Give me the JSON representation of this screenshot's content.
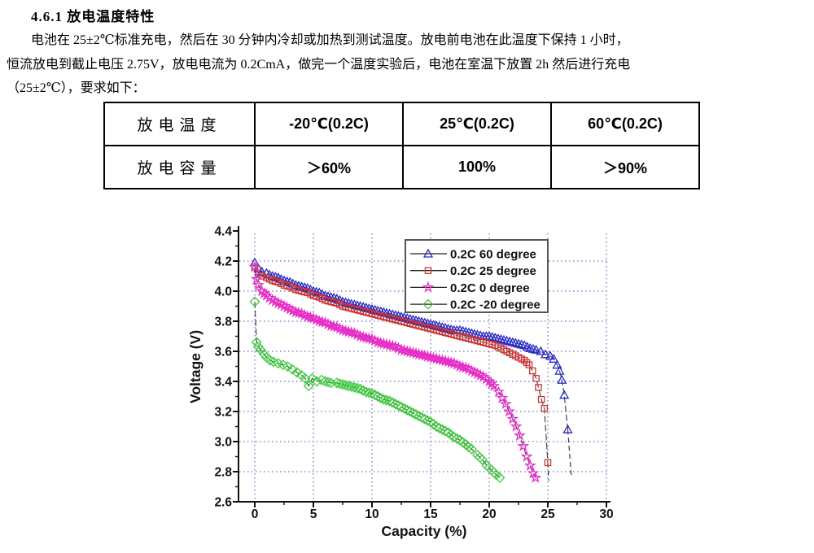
{
  "heading": "4.6.1  放电温度特性",
  "paragraph": {
    "lines": [
      "电池在 25±2℃标准充电，然后在 30 分钟内冷却或加热到测试温度。放电前电池在此温度下保持 1 小时，",
      "恒流放电到截止电压 2.75V，放电电流为 0.2CmA，做完一个温度实验后，电池在室温下放置 2h 然后进行充电",
      "（25±2℃），要求如下："
    ]
  },
  "table": {
    "rows": [
      {
        "cells": [
          "放电温度",
          "-20℃(0.2C)",
          "25℃(0.2C)",
          "60℃(0.2C)"
        ]
      },
      {
        "cells": [
          "放电容量",
          "＞60%",
          "100%",
          "＞90%"
        ]
      }
    ]
  },
  "chart_data": {
    "type": "line",
    "title": "",
    "xlabel": "Capacity (%)",
    "ylabel": "Voltage (V)",
    "xlim": [
      0,
      30
    ],
    "ylim": [
      2.6,
      4.4
    ],
    "xticks": [
      0,
      5,
      10,
      15,
      20,
      25,
      30
    ],
    "yticks": [
      2.6,
      2.8,
      3.0,
      3.2,
      3.4,
      3.6,
      3.8,
      4.0,
      4.2,
      4.4
    ],
    "minor_x_step": 2.5,
    "minor_y_step": 0.1,
    "grid": true,
    "grid_color": "#4747bb",
    "axis_color": "#111111",
    "line_color": "#3c3c3c",
    "legend_position": "top-right-inside",
    "legend_border": "#555555",
    "series": [
      {
        "name": "0.2C 60 degree",
        "marker": "triangle",
        "color": "#2a2ac8",
        "points": [
          [
            0,
            4.19
          ],
          [
            0.3,
            4.15
          ],
          [
            0.6,
            4.13
          ],
          [
            1,
            4.12
          ],
          [
            1.5,
            4.1
          ],
          [
            2,
            4.09
          ],
          [
            2.5,
            4.07
          ],
          [
            3,
            4.06
          ],
          [
            3.5,
            4.04
          ],
          [
            4,
            4.03
          ],
          [
            4.5,
            4.02
          ],
          [
            5,
            4.0
          ],
          [
            5.5,
            3.99
          ],
          [
            6,
            3.97
          ],
          [
            6.5,
            3.96
          ],
          [
            7,
            3.95
          ],
          [
            7.5,
            3.93
          ],
          [
            8,
            3.92
          ],
          [
            8.5,
            3.91
          ],
          [
            9,
            3.9
          ],
          [
            9.5,
            3.89
          ],
          [
            10,
            3.88
          ],
          [
            10.5,
            3.87
          ],
          [
            11,
            3.86
          ],
          [
            11.5,
            3.85
          ],
          [
            12,
            3.84
          ],
          [
            12.5,
            3.83
          ],
          [
            13,
            3.82
          ],
          [
            13.5,
            3.81
          ],
          [
            14,
            3.8
          ],
          [
            14.5,
            3.79
          ],
          [
            15,
            3.78
          ],
          [
            15.5,
            3.77
          ],
          [
            16,
            3.76
          ],
          [
            16.5,
            3.75
          ],
          [
            17,
            3.74
          ],
          [
            17.5,
            3.74
          ],
          [
            18,
            3.73
          ],
          [
            18.5,
            3.72
          ],
          [
            19,
            3.71
          ],
          [
            19.5,
            3.7
          ],
          [
            20,
            3.7
          ],
          [
            20.5,
            3.69
          ],
          [
            21,
            3.68
          ],
          [
            21.5,
            3.67
          ],
          [
            22,
            3.66
          ],
          [
            22.5,
            3.65
          ],
          [
            23,
            3.64
          ],
          [
            23.5,
            3.62
          ],
          [
            24,
            3.61
          ],
          [
            24.4,
            3.6
          ],
          [
            24.8,
            3.58
          ],
          [
            25.2,
            3.57
          ],
          [
            25.5,
            3.55
          ],
          [
            25.8,
            3.51
          ],
          [
            26.0,
            3.47
          ],
          [
            26.2,
            3.41
          ],
          [
            26.4,
            3.31
          ],
          [
            26.7,
            3.08
          ]
        ],
        "tail": [
          [
            26.7,
            3.08
          ],
          [
            27.0,
            2.77
          ]
        ]
      },
      {
        "name": "0.2C 25 degree",
        "marker": "square",
        "color": "#d03232",
        "points": [
          [
            0,
            4.16
          ],
          [
            0.3,
            4.12
          ],
          [
            0.6,
            4.1
          ],
          [
            1,
            4.09
          ],
          [
            1.5,
            4.07
          ],
          [
            2,
            4.06
          ],
          [
            2.5,
            4.04
          ],
          [
            3,
            4.03
          ],
          [
            3.5,
            4.01
          ],
          [
            4,
            4.0
          ],
          [
            4.5,
            3.99
          ],
          [
            5,
            3.97
          ],
          [
            5.5,
            3.96
          ],
          [
            6,
            3.94
          ],
          [
            6.5,
            3.93
          ],
          [
            7,
            3.92
          ],
          [
            7.5,
            3.9
          ],
          [
            8,
            3.89
          ],
          [
            8.5,
            3.88
          ],
          [
            9,
            3.87
          ],
          [
            9.5,
            3.86
          ],
          [
            10,
            3.85
          ],
          [
            10.5,
            3.84
          ],
          [
            11,
            3.83
          ],
          [
            11.5,
            3.82
          ],
          [
            12,
            3.81
          ],
          [
            12.5,
            3.8
          ],
          [
            13,
            3.79
          ],
          [
            13.5,
            3.78
          ],
          [
            14,
            3.77
          ],
          [
            14.5,
            3.76
          ],
          [
            15,
            3.75
          ],
          [
            15.5,
            3.74
          ],
          [
            16,
            3.73
          ],
          [
            16.5,
            3.72
          ],
          [
            17,
            3.71
          ],
          [
            17.5,
            3.7
          ],
          [
            18,
            3.69
          ],
          [
            18.5,
            3.68
          ],
          [
            19,
            3.67
          ],
          [
            19.5,
            3.66
          ],
          [
            20,
            3.65
          ],
          [
            20.5,
            3.64
          ],
          [
            21,
            3.62
          ],
          [
            21.5,
            3.6
          ],
          [
            22,
            3.58
          ],
          [
            22.5,
            3.56
          ],
          [
            23,
            3.54
          ],
          [
            23.4,
            3.51
          ],
          [
            23.7,
            3.47
          ],
          [
            24.0,
            3.42
          ],
          [
            24.2,
            3.36
          ],
          [
            24.45,
            3.28
          ],
          [
            24.7,
            3.22
          ],
          [
            25.0,
            2.86
          ]
        ],
        "tail": [
          [
            25.0,
            2.86
          ],
          [
            25.07,
            2.74
          ]
        ]
      },
      {
        "name": "0.2C 0  degree",
        "marker": "star",
        "color": "#e62ec8",
        "points": [
          [
            0,
            4.16
          ],
          [
            0.15,
            4.08
          ],
          [
            0.3,
            4.04
          ],
          [
            0.6,
            4.0
          ],
          [
            1,
            3.97
          ],
          [
            1.5,
            3.94
          ],
          [
            2,
            3.92
          ],
          [
            2.5,
            3.9
          ],
          [
            3,
            3.88
          ],
          [
            3.5,
            3.86
          ],
          [
            4,
            3.85
          ],
          [
            4.5,
            3.83
          ],
          [
            5,
            3.82
          ],
          [
            5.5,
            3.8
          ],
          [
            6,
            3.79
          ],
          [
            6.5,
            3.77
          ],
          [
            7,
            3.76
          ],
          [
            7.5,
            3.74
          ],
          [
            8,
            3.73
          ],
          [
            8.5,
            3.72
          ],
          [
            9,
            3.7
          ],
          [
            9.5,
            3.69
          ],
          [
            10,
            3.68
          ],
          [
            10.5,
            3.66
          ],
          [
            11,
            3.65
          ],
          [
            11.5,
            3.64
          ],
          [
            12,
            3.63
          ],
          [
            12.5,
            3.61
          ],
          [
            13,
            3.6
          ],
          [
            13.5,
            3.59
          ],
          [
            14,
            3.58
          ],
          [
            14.5,
            3.57
          ],
          [
            15,
            3.56
          ],
          [
            15.5,
            3.55
          ],
          [
            16,
            3.54
          ],
          [
            16.5,
            3.53
          ],
          [
            17,
            3.52
          ],
          [
            17.5,
            3.5
          ],
          [
            18,
            3.49
          ],
          [
            18.5,
            3.47
          ],
          [
            19,
            3.45
          ],
          [
            19.5,
            3.43
          ],
          [
            20,
            3.4
          ],
          [
            20.4,
            3.37
          ],
          [
            20.8,
            3.33
          ],
          [
            21.1,
            3.29
          ],
          [
            21.4,
            3.25
          ],
          [
            21.7,
            3.2
          ],
          [
            22.0,
            3.15
          ],
          [
            22.3,
            3.1
          ],
          [
            22.6,
            3.04
          ],
          [
            22.9,
            2.97
          ],
          [
            23.2,
            2.9
          ],
          [
            23.5,
            2.84
          ],
          [
            23.75,
            2.79
          ],
          [
            23.95,
            2.76
          ]
        ],
        "tail": []
      },
      {
        "name": "0.2C -20 degree",
        "marker": "diamond",
        "color": "#3fca3f",
        "points": [
          [
            0,
            3.93
          ],
          [
            0.15,
            3.66
          ],
          [
            0.3,
            3.63
          ],
          [
            0.5,
            3.61
          ],
          [
            0.8,
            3.58
          ],
          [
            1,
            3.56
          ],
          [
            1.3,
            3.54
          ],
          [
            1.6,
            3.53
          ],
          [
            2,
            3.52
          ],
          [
            2.4,
            3.51
          ],
          [
            2.8,
            3.5
          ],
          [
            3.2,
            3.48
          ],
          [
            3.6,
            3.46
          ],
          [
            4,
            3.44
          ],
          [
            4.3,
            3.42
          ],
          [
            4.6,
            3.37
          ],
          [
            4.9,
            3.42
          ],
          [
            5.3,
            3.4
          ],
          [
            5.7,
            3.41
          ],
          [
            6,
            3.4
          ],
          [
            6.5,
            3.39
          ],
          [
            7,
            3.39
          ],
          [
            7.5,
            3.38
          ],
          [
            8,
            3.37
          ],
          [
            8.5,
            3.36
          ],
          [
            9,
            3.35
          ],
          [
            9.5,
            3.33
          ],
          [
            10,
            3.32
          ],
          [
            10.5,
            3.3
          ],
          [
            11,
            3.28
          ],
          [
            11.5,
            3.27
          ],
          [
            12,
            3.25
          ],
          [
            12.5,
            3.23
          ],
          [
            13,
            3.21
          ],
          [
            13.5,
            3.19
          ],
          [
            14,
            3.17
          ],
          [
            14.5,
            3.15
          ],
          [
            15,
            3.13
          ],
          [
            15.5,
            3.1
          ],
          [
            16,
            3.08
          ],
          [
            16.5,
            3.06
          ],
          [
            17,
            3.03
          ],
          [
            17.5,
            3.01
          ],
          [
            18,
            2.98
          ],
          [
            18.5,
            2.95
          ],
          [
            19,
            2.91
          ],
          [
            19.4,
            2.88
          ],
          [
            19.8,
            2.84
          ],
          [
            20.2,
            2.81
          ],
          [
            20.6,
            2.78
          ],
          [
            20.9,
            2.76
          ]
        ],
        "tail": []
      }
    ]
  }
}
